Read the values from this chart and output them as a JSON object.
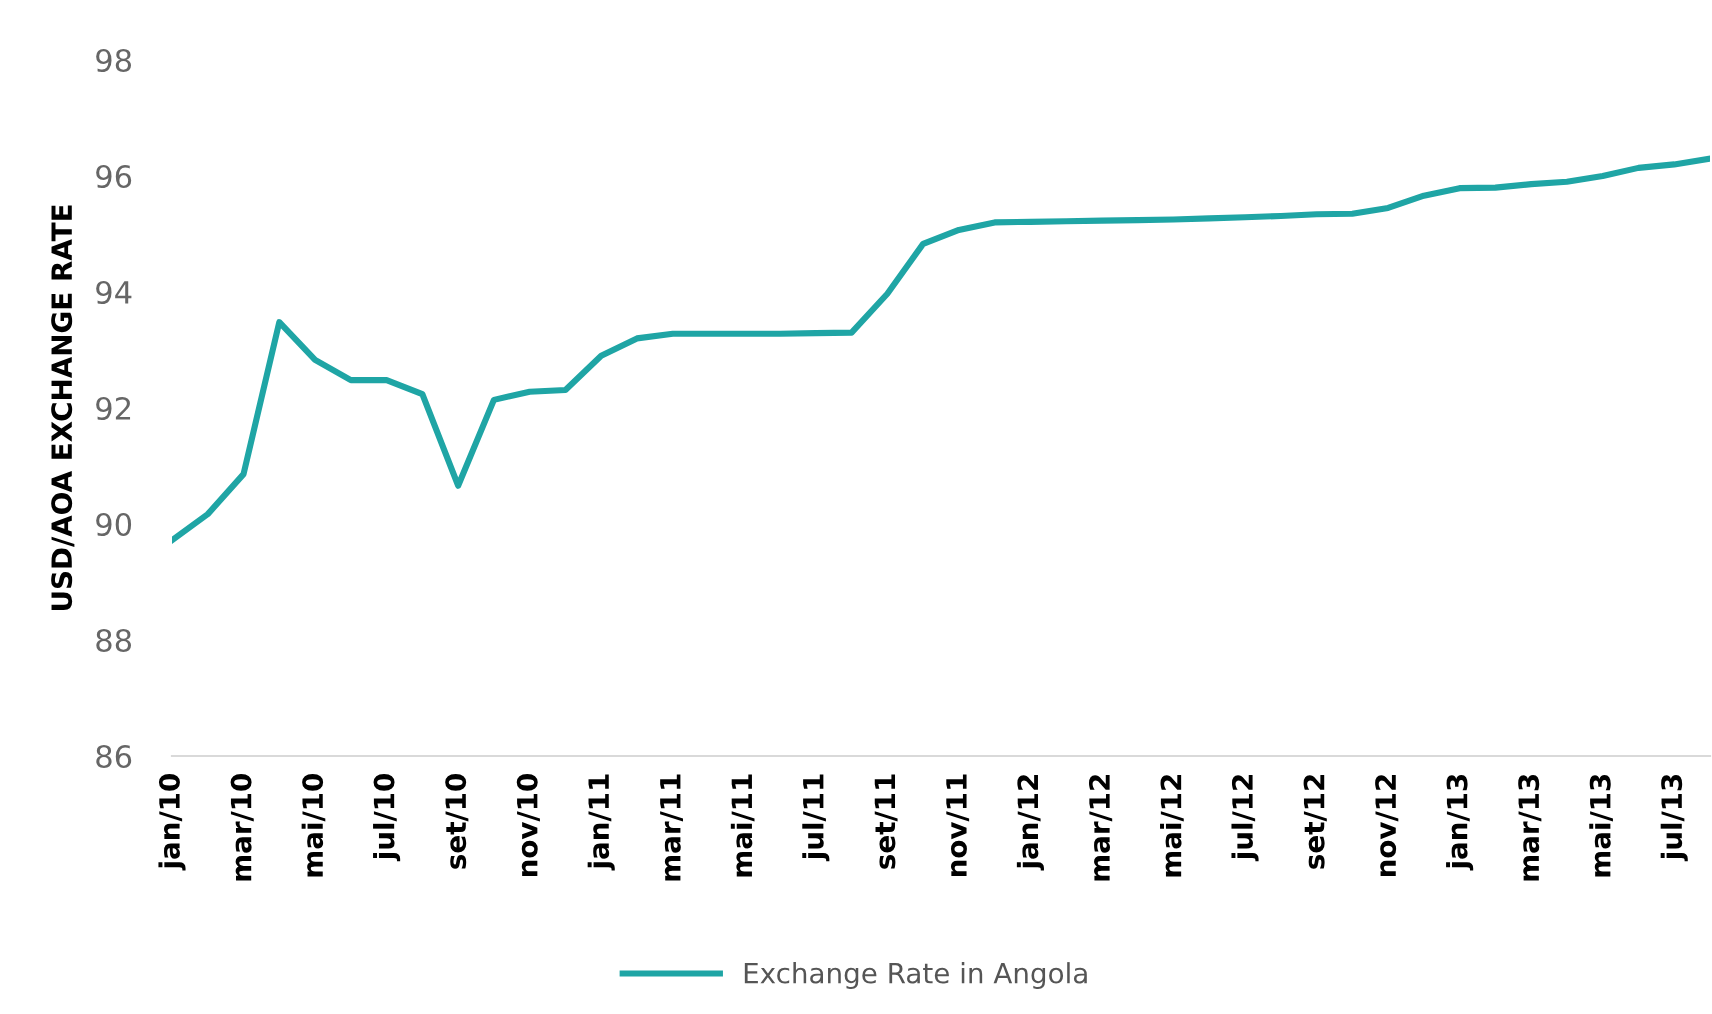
{
  "chart_data": {
    "type": "line",
    "ylabel": "USD/AOA EXCHANGE RATE",
    "categories": [
      "jan/10",
      null,
      "mar/10",
      null,
      "mai/10",
      null,
      "jul/10",
      null,
      "set/10",
      null,
      "nov/10",
      null,
      "jan/11",
      null,
      "mar/11",
      null,
      "mai/11",
      null,
      "jul/11",
      null,
      "set/11",
      null,
      "nov/11",
      null,
      "jan/12",
      null,
      "mar/12",
      null,
      "mai/12",
      null,
      "jul/12",
      null,
      "set/12",
      null,
      "nov/12",
      null,
      "jan/13",
      null,
      "mar/13",
      null,
      "mai/13",
      null,
      "jul/13",
      null
    ],
    "series": [
      {
        "name": "Exchange Rate in Angola",
        "color": "#1fa5a5",
        "values": [
          89.72,
          90.17,
          90.86,
          93.48,
          92.83,
          92.48,
          92.48,
          92.24,
          90.66,
          92.14,
          92.28,
          92.31,
          92.9,
          93.2,
          93.28,
          93.28,
          93.28,
          93.28,
          93.29,
          93.3,
          93.97,
          94.83,
          95.07,
          95.2,
          95.21,
          95.22,
          95.23,
          95.24,
          95.25,
          95.27,
          95.29,
          95.31,
          95.34,
          95.35,
          95.45,
          95.66,
          95.79,
          95.8,
          95.86,
          95.9,
          96.0,
          96.14,
          96.2,
          96.3
        ]
      }
    ],
    "ylim": [
      86,
      98
    ],
    "yticks": [
      86,
      88,
      90,
      92,
      94,
      96,
      98
    ],
    "grid": false,
    "legend": "bottom",
    "marker": "none",
    "line_style": "solid"
  }
}
